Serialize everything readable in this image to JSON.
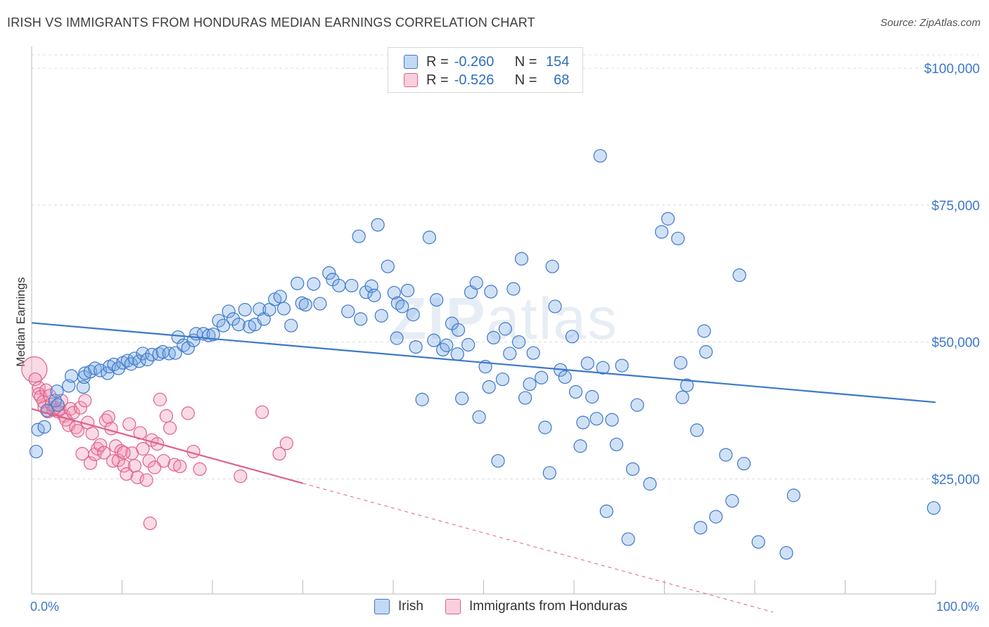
{
  "title": "IRISH VS IMMIGRANTS FROM HONDURAS MEDIAN EARNINGS CORRELATION CHART",
  "source": "Source: ZipAtlas.com",
  "watermark": {
    "bold": "ZIP",
    "light": "atlas"
  },
  "colors": {
    "irish": "#3d78c9",
    "irish_fill": "rgba(120,170,230,0.35)",
    "honduras": "#e0608a",
    "honduras_fill": "rgba(240,150,180,0.35)",
    "grid": "#dcdcdc",
    "axis_text": "#3d78c9"
  },
  "legend_top": {
    "rows": [
      {
        "r_label": "R =",
        "r_value": "-0.260",
        "n_label": "N =",
        "n_value": "154"
      },
      {
        "r_label": "R =",
        "r_value": "-0.526",
        "n_label": "N =",
        "n_value": "68"
      }
    ]
  },
  "legend_bottom": {
    "items": [
      {
        "label": "Irish"
      },
      {
        "label": "Immigrants from Honduras"
      }
    ]
  },
  "chart_data": {
    "type": "scatter",
    "ylabel": "Median Earnings",
    "xlim": [
      0,
      100
    ],
    "ylim": [
      0,
      100000
    ],
    "x_tick_labels": [
      {
        "value": 0,
        "label": "0.0%"
      },
      {
        "value": 100,
        "label": "100.0%"
      }
    ],
    "y_ticks": [
      {
        "value": 25000,
        "label": "$25,000"
      },
      {
        "value": 50000,
        "label": "$50,000"
      },
      {
        "value": 75000,
        "label": "$75,000"
      },
      {
        "value": 100000,
        "label": "$100,000"
      }
    ],
    "grid": true,
    "legend_placement": "top-center",
    "series": [
      {
        "name": "Irish",
        "r": -0.26,
        "n": 154,
        "trend": {
          "x": [
            0,
            100
          ],
          "y": [
            53500,
            39000
          ],
          "dashed_from": null
        },
        "points": [
          [
            0.5,
            30000
          ],
          [
            0.7,
            34000
          ],
          [
            1.4,
            34500
          ],
          [
            1.7,
            37500
          ],
          [
            2.6,
            39300
          ],
          [
            2.8,
            41000
          ],
          [
            2.9,
            38500
          ],
          [
            4.1,
            42000
          ],
          [
            4.4,
            43800
          ],
          [
            5.7,
            41800
          ],
          [
            5.8,
            43600
          ],
          [
            5.9,
            44300
          ],
          [
            6.5,
            44600
          ],
          [
            7.0,
            45200
          ],
          [
            7.6,
            44800
          ],
          [
            8.4,
            44300
          ],
          [
            8.6,
            45500
          ],
          [
            9.1,
            45900
          ],
          [
            9.6,
            45200
          ],
          [
            10.1,
            46200
          ],
          [
            10.6,
            46600
          ],
          [
            11.0,
            46000
          ],
          [
            11.4,
            47000
          ],
          [
            11.9,
            46500
          ],
          [
            12.3,
            47900
          ],
          [
            12.8,
            46800
          ],
          [
            13.3,
            47700
          ],
          [
            14.1,
            47800
          ],
          [
            14.5,
            48200
          ],
          [
            15.2,
            47900
          ],
          [
            15.9,
            48000
          ],
          [
            16.2,
            50900
          ],
          [
            16.8,
            49400
          ],
          [
            17.3,
            48900
          ],
          [
            17.9,
            50300
          ],
          [
            18.2,
            51500
          ],
          [
            19.0,
            51500
          ],
          [
            19.6,
            51200
          ],
          [
            20.1,
            51400
          ],
          [
            20.7,
            53900
          ],
          [
            21.2,
            53000
          ],
          [
            21.8,
            55600
          ],
          [
            22.3,
            54200
          ],
          [
            22.9,
            53200
          ],
          [
            23.6,
            55900
          ],
          [
            24.1,
            52800
          ],
          [
            24.7,
            53200
          ],
          [
            25.2,
            56000
          ],
          [
            25.7,
            54200
          ],
          [
            26.3,
            55900
          ],
          [
            26.9,
            57800
          ],
          [
            27.5,
            58300
          ],
          [
            27.9,
            56100
          ],
          [
            28.7,
            53000
          ],
          [
            29.4,
            60700
          ],
          [
            29.9,
            57100
          ],
          [
            30.3,
            56800
          ],
          [
            31.2,
            60600
          ],
          [
            31.9,
            57000
          ],
          [
            32.9,
            62600
          ],
          [
            33.3,
            61400
          ],
          [
            34.0,
            60300
          ],
          [
            35.0,
            55600
          ],
          [
            35.4,
            60300
          ],
          [
            36.2,
            69300
          ],
          [
            36.4,
            54200
          ],
          [
            37.0,
            59100
          ],
          [
            37.6,
            60200
          ],
          [
            37.9,
            58500
          ],
          [
            38.3,
            71400
          ],
          [
            38.7,
            54800
          ],
          [
            39.4,
            63800
          ],
          [
            40.1,
            59000
          ],
          [
            40.5,
            57100
          ],
          [
            41.0,
            56500
          ],
          [
            40.4,
            50700
          ],
          [
            41.6,
            59400
          ],
          [
            42.2,
            55000
          ],
          [
            42.5,
            49100
          ],
          [
            43.2,
            39500
          ],
          [
            44.0,
            69100
          ],
          [
            44.5,
            50300
          ],
          [
            44.8,
            57700
          ],
          [
            45.5,
            48600
          ],
          [
            45.9,
            49400
          ],
          [
            46.5,
            53400
          ],
          [
            47.1,
            47800
          ],
          [
            47.2,
            52200
          ],
          [
            47.6,
            39700
          ],
          [
            48.3,
            49500
          ],
          [
            48.6,
            59100
          ],
          [
            49.2,
            60800
          ],
          [
            49.5,
            36300
          ],
          [
            50.2,
            45500
          ],
          [
            50.6,
            41800
          ],
          [
            50.8,
            59200
          ],
          [
            51.1,
            50800
          ],
          [
            51.6,
            28300
          ],
          [
            52.1,
            43200
          ],
          [
            52.4,
            52400
          ],
          [
            52.9,
            47900
          ],
          [
            53.3,
            59700
          ],
          [
            53.9,
            50000
          ],
          [
            54.2,
            65200
          ],
          [
            54.6,
            39800
          ],
          [
            55.1,
            42300
          ],
          [
            55.5,
            48000
          ],
          [
            56.4,
            43500
          ],
          [
            56.8,
            34400
          ],
          [
            57.6,
            63800
          ],
          [
            57.9,
            56500
          ],
          [
            57.3,
            26100
          ],
          [
            58.5,
            44900
          ],
          [
            59.0,
            43600
          ],
          [
            59.8,
            51000
          ],
          [
            60.2,
            40900
          ],
          [
            60.7,
            31000
          ],
          [
            61.0,
            35300
          ],
          [
            61.5,
            46100
          ],
          [
            62.0,
            40000
          ],
          [
            62.5,
            36000
          ],
          [
            62.9,
            84000
          ],
          [
            63.2,
            45300
          ],
          [
            63.6,
            19100
          ],
          [
            64.2,
            35800
          ],
          [
            64.7,
            31300
          ],
          [
            65.3,
            45700
          ],
          [
            66.0,
            14000
          ],
          [
            66.5,
            26800
          ],
          [
            67.0,
            38500
          ],
          [
            68.4,
            24100
          ],
          [
            69.7,
            70100
          ],
          [
            70.4,
            72500
          ],
          [
            71.5,
            68900
          ],
          [
            71.8,
            46200
          ],
          [
            72.0,
            39900
          ],
          [
            72.5,
            42100
          ],
          [
            73.6,
            33900
          ],
          [
            74.0,
            16100
          ],
          [
            74.4,
            52000
          ],
          [
            74.6,
            48200
          ],
          [
            75.7,
            18100
          ],
          [
            76.8,
            29400
          ],
          [
            77.5,
            21000
          ],
          [
            78.3,
            62200
          ],
          [
            78.8,
            27800
          ],
          [
            80.4,
            13500
          ],
          [
            83.5,
            11500
          ],
          [
            84.3,
            22000
          ],
          [
            99.8,
            19700
          ]
        ]
      },
      {
        "name": "Immigrants from Honduras",
        "r": -0.526,
        "n": 68,
        "trend": {
          "x": [
            0,
            30,
            82
          ],
          "y": [
            37800,
            24200,
            700
          ],
          "dashed_from": 30
        },
        "points": [
          [
            0.3,
            45000
          ],
          [
            0.4,
            43200
          ],
          [
            0.8,
            41600
          ],
          [
            0.8,
            40500
          ],
          [
            1.0,
            40000
          ],
          [
            1.3,
            39100
          ],
          [
            1.4,
            38100
          ],
          [
            1.6,
            41200
          ],
          [
            1.8,
            37300
          ],
          [
            2.0,
            40200
          ],
          [
            2.2,
            38600
          ],
          [
            2.4,
            37600
          ],
          [
            2.6,
            38000
          ],
          [
            2.9,
            37300
          ],
          [
            3.1,
            37800
          ],
          [
            3.3,
            39300
          ],
          [
            3.6,
            36500
          ],
          [
            3.8,
            35800
          ],
          [
            4.1,
            34800
          ],
          [
            4.3,
            37800
          ],
          [
            4.6,
            37100
          ],
          [
            4.9,
            34400
          ],
          [
            5.1,
            33800
          ],
          [
            5.4,
            38000
          ],
          [
            5.6,
            29600
          ],
          [
            5.9,
            39300
          ],
          [
            6.2,
            35300
          ],
          [
            6.5,
            27900
          ],
          [
            6.7,
            33300
          ],
          [
            7.0,
            29500
          ],
          [
            7.3,
            30500
          ],
          [
            7.6,
            31200
          ],
          [
            8.0,
            29800
          ],
          [
            8.2,
            35700
          ],
          [
            8.5,
            36300
          ],
          [
            8.8,
            34200
          ],
          [
            9.0,
            28300
          ],
          [
            9.3,
            31000
          ],
          [
            9.6,
            28400
          ],
          [
            9.9,
            30100
          ],
          [
            10.2,
            27400
          ],
          [
            10.5,
            25900
          ],
          [
            10.8,
            35000
          ],
          [
            11.1,
            29700
          ],
          [
            11.4,
            27400
          ],
          [
            11.7,
            25300
          ],
          [
            12.0,
            33400
          ],
          [
            12.3,
            30500
          ],
          [
            12.7,
            24800
          ],
          [
            13.0,
            28300
          ],
          [
            13.3,
            32100
          ],
          [
            13.6,
            27100
          ],
          [
            13.9,
            31400
          ],
          [
            14.2,
            39500
          ],
          [
            14.6,
            28300
          ],
          [
            14.9,
            36500
          ],
          [
            15.3,
            34300
          ],
          [
            15.8,
            27600
          ],
          [
            16.4,
            27300
          ],
          [
            17.3,
            37000
          ],
          [
            17.9,
            30000
          ],
          [
            18.6,
            26800
          ],
          [
            23.1,
            25500
          ],
          [
            25.5,
            37200
          ],
          [
            27.4,
            29600
          ],
          [
            28.2,
            31500
          ],
          [
            13.1,
            16900
          ],
          [
            10.2,
            29800
          ]
        ]
      }
    ]
  }
}
